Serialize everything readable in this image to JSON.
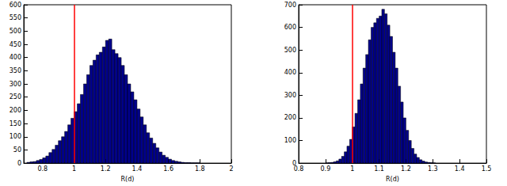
{
  "chart_data": [
    {
      "type": "histogram",
      "xlabel": "R(d)",
      "color": "#00008b",
      "grid": false,
      "xlim": [
        0.68,
        2
      ],
      "xticks": [
        0.8,
        1,
        1.2,
        1.4,
        1.6,
        1.8,
        2
      ],
      "ylim": [
        0,
        600
      ],
      "yticks": [
        0,
        50,
        100,
        150,
        200,
        250,
        300,
        350,
        400,
        450,
        500,
        550,
        600
      ],
      "vline": {
        "x": 1,
        "color": "#ff0000"
      },
      "bins": [
        0.7,
        0.72,
        0.74,
        0.76,
        0.78,
        0.8,
        0.82,
        0.84,
        0.86,
        0.88,
        0.9,
        0.92,
        0.94,
        0.96,
        0.98,
        1.0,
        1.02,
        1.04,
        1.06,
        1.08,
        1.1,
        1.12,
        1.14,
        1.16,
        1.18,
        1.2,
        1.22,
        1.24,
        1.26,
        1.28,
        1.3,
        1.32,
        1.34,
        1.36,
        1.38,
        1.4,
        1.42,
        1.44,
        1.46,
        1.48,
        1.5,
        1.52,
        1.54,
        1.56,
        1.58,
        1.6,
        1.62,
        1.64,
        1.66,
        1.68,
        1.7,
        1.72,
        1.74,
        1.76,
        1.78,
        1.8
      ],
      "values": [
        3,
        5,
        6,
        10,
        14,
        20,
        27,
        40,
        52,
        68,
        85,
        100,
        120,
        145,
        170,
        195,
        225,
        260,
        300,
        335,
        370,
        390,
        410,
        420,
        440,
        465,
        470,
        430,
        415,
        400,
        370,
        335,
        300,
        270,
        240,
        205,
        175,
        145,
        115,
        95,
        75,
        58,
        42,
        30,
        22,
        15,
        10,
        7,
        5,
        3,
        2,
        2,
        1,
        1,
        1
      ]
    },
    {
      "type": "histogram",
      "xlabel": "R(d)",
      "color": "#00008b",
      "grid": false,
      "xlim": [
        0.8,
        1.5
      ],
      "xticks": [
        0.8,
        0.9,
        1,
        1.1,
        1.2,
        1.3,
        1.4,
        1.5
      ],
      "ylim": [
        0,
        700
      ],
      "yticks": [
        0,
        100,
        200,
        300,
        400,
        500,
        600,
        700
      ],
      "vline": {
        "x": 1,
        "color": "#ff0000"
      },
      "bins": [
        0.9,
        0.91,
        0.92,
        0.93,
        0.94,
        0.95,
        0.96,
        0.97,
        0.98,
        0.99,
        1.0,
        1.01,
        1.02,
        1.03,
        1.04,
        1.05,
        1.06,
        1.07,
        1.08,
        1.09,
        1.1,
        1.11,
        1.12,
        1.13,
        1.14,
        1.15,
        1.16,
        1.17,
        1.18,
        1.19,
        1.2,
        1.21,
        1.22,
        1.23,
        1.24,
        1.25,
        1.26,
        1.27,
        1.28,
        1.29,
        1.3,
        1.31
      ],
      "values": [
        1,
        2,
        3,
        6,
        10,
        18,
        30,
        50,
        75,
        105,
        160,
        220,
        280,
        350,
        420,
        480,
        545,
        600,
        620,
        640,
        650,
        680,
        660,
        610,
        560,
        490,
        420,
        340,
        270,
        200,
        145,
        100,
        65,
        40,
        25,
        15,
        9,
        5,
        3,
        2,
        1
      ]
    }
  ]
}
